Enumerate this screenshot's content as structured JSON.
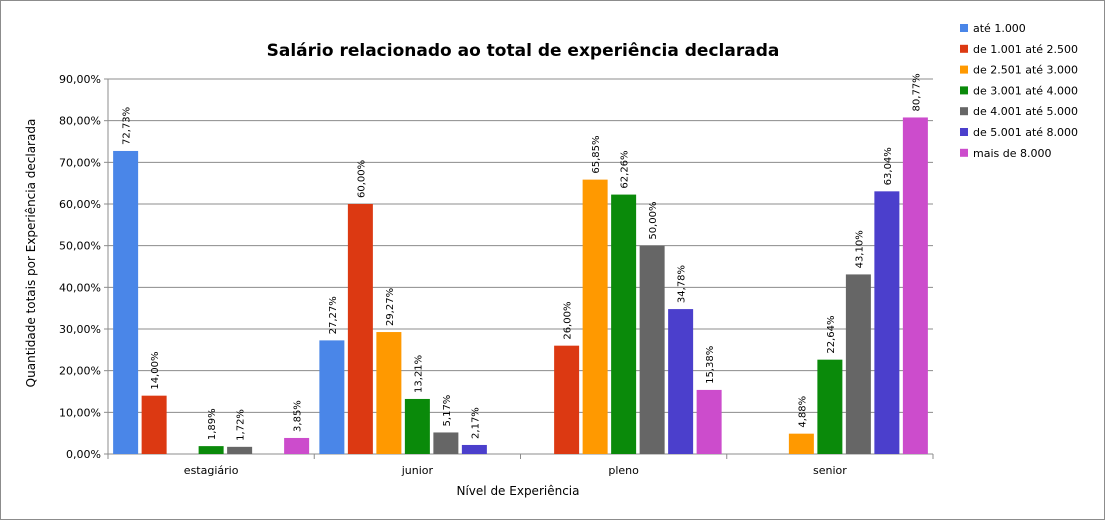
{
  "chart_data": {
    "type": "bar",
    "title": "Salário relacionado ao total de experiência declarada",
    "xlabel": "Nível de Experiência",
    "ylabel": "Quantidade totais por Experiência declarada",
    "ylim": [
      0,
      90
    ],
    "yticks": [
      "0,00%",
      "10,00%",
      "20,00%",
      "30,00%",
      "40,00%",
      "50,00%",
      "60,00%",
      "70,00%",
      "80,00%",
      "90,00%"
    ],
    "grid": true,
    "legend_position": "right",
    "categories": [
      "estagiário",
      "junior",
      "pleno",
      "senior"
    ],
    "series": [
      {
        "name": "até 1.000",
        "color": "#4a86e8",
        "values": [
          72.73,
          27.27,
          null,
          null
        ],
        "labels": [
          "72,73%",
          "27,27%",
          "",
          ""
        ]
      },
      {
        "name": "de 1.001 até  2.500",
        "color": "#dc3912",
        "values": [
          14.0,
          60.0,
          26.0,
          null
        ],
        "labels": [
          "14,00%",
          "60,00%",
          "26,00%",
          ""
        ]
      },
      {
        "name": "de 2.501 até  3.000",
        "color": "#ff9900",
        "values": [
          null,
          29.27,
          65.85,
          4.88
        ],
        "labels": [
          "",
          "29,27%",
          "65,85%",
          "4,88%"
        ]
      },
      {
        "name": "de 3.001 até  4.000",
        "color": "#0a8a0a",
        "values": [
          1.89,
          13.21,
          62.26,
          22.64
        ],
        "labels": [
          "1,89%",
          "13,21%",
          "62,26%",
          "22,64%"
        ]
      },
      {
        "name": "de 4.001 até  5.000",
        "color": "#666666",
        "values": [
          1.72,
          5.17,
          50.0,
          43.1
        ],
        "labels": [
          "1,72%",
          "5,17%",
          "50,00%",
          "43,10%"
        ]
      },
      {
        "name": "de 5.001 até  8.000",
        "color": "#4b3fcc",
        "values": [
          null,
          2.17,
          34.78,
          63.04
        ],
        "labels": [
          "",
          "2,17%",
          "34,78%",
          "63,04%"
        ]
      },
      {
        "name": "mais de 8.000",
        "color": "#cc4ccc",
        "values": [
          3.85,
          null,
          15.38,
          80.77
        ],
        "labels": [
          "3,85%",
          "",
          "15,38%",
          "80,77%"
        ]
      }
    ]
  }
}
